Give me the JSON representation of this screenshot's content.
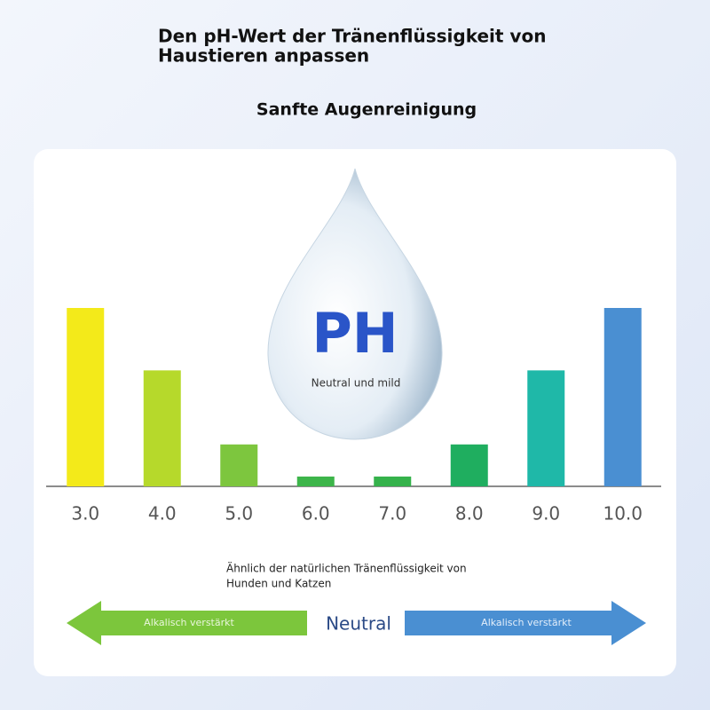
{
  "header": {
    "title_line1": "Den pH-Wert der Tränenflüssigkeit von",
    "title_line2": "Haustieren anpassen",
    "subtitle": "Sanfte Augenreinigung"
  },
  "drop": {
    "label": "PH",
    "caption": "Neutral und mild"
  },
  "note": {
    "line1": "Ähnlich der natürlichen Tränenflüssigkeit von",
    "line2": "Hunden und Katzen"
  },
  "scale": {
    "left_arrow": "Alkalisch verstärkt",
    "center": "Neutral",
    "right_arrow": "Alkalisch verstärkt"
  },
  "chart_data": {
    "type": "bar",
    "categories": [
      "3.0",
      "4.0",
      "5.0",
      "6.0",
      "7.0",
      "8.0",
      "9.0",
      "10.0"
    ],
    "values": [
      20,
      13,
      4.7,
      1.1,
      1.1,
      4.7,
      13,
      20
    ],
    "colors": [
      "#f3ea1a",
      "#b6d92b",
      "#7dc63e",
      "#3db54a",
      "#35b24b",
      "#1fae5f",
      "#1fb8a8",
      "#4a8fd2"
    ],
    "ylim": [
      0,
      20
    ]
  }
}
